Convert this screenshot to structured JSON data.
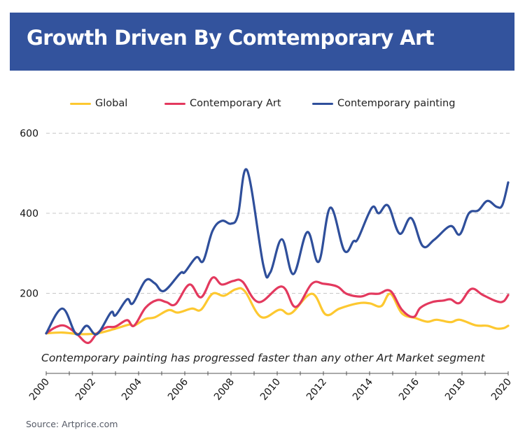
{
  "header": {
    "title": "Growth Driven By Comtemporary Art"
  },
  "footer": {
    "source": "Source: Artprice.com"
  },
  "colors": {
    "title_bar": "#33539d",
    "global": "#fdc830",
    "contemporary_art": "#e3395e",
    "contemporary_painting": "#2f4f9b",
    "grid": "#c8c8c8"
  },
  "chart_data": {
    "type": "line",
    "title": "Growth Driven By Comtemporary Art",
    "xlabel": "",
    "ylabel": "",
    "xlim": [
      2000,
      2020
    ],
    "ylim": [
      0,
      600
    ],
    "yticks": [
      200,
      400,
      600
    ],
    "ytick_labels": [
      "200",
      "400",
      "600"
    ],
    "xticks": [
      2000,
      2002,
      2004,
      2006,
      2008,
      2010,
      2012,
      2014,
      2016,
      2018,
      2020
    ],
    "xtick_labels": [
      "2000",
      "2002",
      "2004",
      "2006",
      "2008",
      "2010",
      "2012",
      "2014",
      "2016",
      "2018",
      "2020"
    ],
    "grid": "horizontal dashed",
    "legend_position": "top-center",
    "annotation": "Contemporary painting has progressed faster than any other Art Market segment",
    "series": [
      {
        "name": "Global",
        "color": "#fdc830",
        "x": [
          2000,
          2000.7,
          2001.5,
          2002.2,
          2002.9,
          2003.6,
          2003.8,
          2004.3,
          2004.7,
          2005.3,
          2005.7,
          2006.3,
          2006.7,
          2007.2,
          2007.7,
          2008.2,
          2008.6,
          2009.3,
          2010.1,
          2010.6,
          2011.5,
          2012.1,
          2012.7,
          2013.5,
          2014.0,
          2014.5,
          2014.9,
          2015.4,
          2016.0,
          2016.5,
          2016.9,
          2017.5,
          2017.9,
          2018.6,
          2019.1,
          2019.5,
          2019.8,
          2020.0
        ],
        "values": [
          100,
          102,
          98,
          100,
          110,
          122,
          119,
          136,
          140,
          158,
          152,
          162,
          159,
          199,
          194,
          210,
          205,
          141,
          159,
          150,
          199,
          147,
          162,
          175,
          175,
          168,
          199,
          150,
          138,
          129,
          134,
          128,
          134,
          120,
          119,
          112,
          113,
          119
        ]
      },
      {
        "name": "Contemporary Art",
        "color": "#e3395e",
        "x": [
          2000,
          2000.4,
          2000.8,
          2001.3,
          2001.8,
          2002.2,
          2002.6,
          2003.0,
          2003.5,
          2003.8,
          2004.3,
          2004.8,
          2005.2,
          2005.6,
          2006.2,
          2006.7,
          2007.2,
          2007.6,
          2008.1,
          2008.5,
          2009.2,
          2010.2,
          2010.8,
          2011.5,
          2012.0,
          2012.6,
          2013.0,
          2013.6,
          2014.0,
          2014.4,
          2014.9,
          2015.4,
          2015.9,
          2016.2,
          2016.7,
          2017.2,
          2017.5,
          2017.9,
          2018.4,
          2018.9,
          2019.5,
          2019.8,
          2020.0
        ],
        "values": [
          100,
          115,
          119,
          100,
          76,
          100,
          115,
          117,
          133,
          119,
          164,
          183,
          178,
          173,
          222,
          190,
          239,
          222,
          231,
          229,
          178,
          217,
          166,
          224,
          224,
          217,
          199,
          192,
          199,
          199,
          206,
          159,
          141,
          164,
          178,
          182,
          185,
          176,
          211,
          196,
          180,
          180,
          196
        ]
      },
      {
        "name": "Contemporary painting",
        "color": "#2f4f9b",
        "x": [
          2000,
          2000.7,
          2001.3,
          2001.75,
          2002.2,
          2002.8,
          2003.0,
          2003.5,
          2003.75,
          2004.3,
          2004.7,
          2005.1,
          2005.8,
          2006.0,
          2006.5,
          2006.8,
          2007.2,
          2007.6,
          2008.0,
          2008.3,
          2008.7,
          2009.4,
          2009.7,
          2010.2,
          2010.7,
          2011.3,
          2011.8,
          2012.3,
          2012.9,
          2013.3,
          2013.5,
          2014.1,
          2014.4,
          2014.8,
          2015.3,
          2015.8,
          2016.3,
          2016.8,
          2017.5,
          2017.9,
          2018.3,
          2018.7,
          2019.1,
          2019.5,
          2019.75,
          2020.0
        ],
        "values": [
          100,
          162,
          98,
          119,
          98,
          152,
          145,
          185,
          175,
          232,
          225,
          206,
          250,
          253,
          290,
          281,
          356,
          381,
          374,
          395,
          507,
          270,
          252,
          335,
          248,
          353,
          279,
          414,
          307,
          330,
          337,
          414,
          400,
          419,
          349,
          388,
          318,
          334,
          368,
          347,
          400,
          407,
          431,
          416,
          421,
          477
        ]
      }
    ]
  }
}
